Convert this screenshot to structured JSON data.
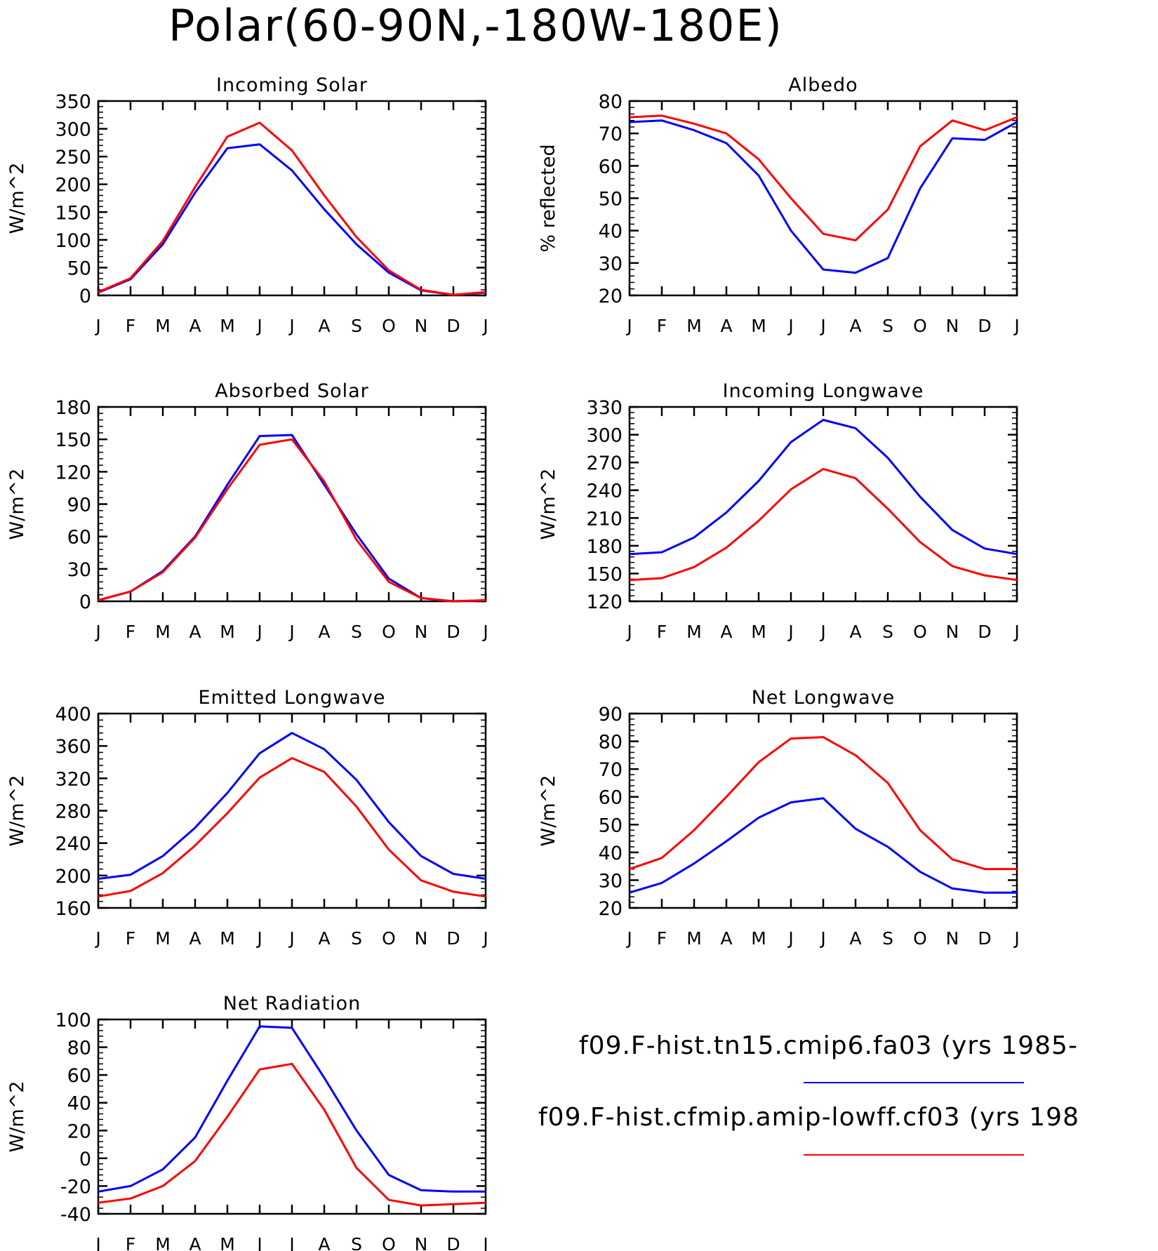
{
  "title": "Polar(60-90N,-180W-180E)",
  "legend": [
    {
      "label": "f09.F-hist.tn15.cmip6.fa03 (yrs 1985-",
      "color": "#0000ff"
    },
    {
      "label": "f09.F-hist.cfmip.amip-lowff.cf03 (yrs 198",
      "color": "#ff0000"
    }
  ],
  "chart_data": [
    {
      "type": "line",
      "title": "Incoming Solar",
      "ylabel": "W/m^2",
      "categories": [
        "J",
        "F",
        "M",
        "A",
        "M",
        "J",
        "J",
        "A",
        "S",
        "O",
        "N",
        "D",
        "J"
      ],
      "ylim": [
        0,
        350
      ],
      "yticks": [
        0,
        50,
        100,
        150,
        200,
        250,
        300,
        350
      ],
      "series": [
        {
          "color": "#0000ff",
          "values": [
            5,
            29,
            92,
            185,
            265,
            272,
            225,
            155,
            92,
            41,
            9,
            1,
            5
          ]
        },
        {
          "color": "#ff0000",
          "values": [
            6,
            31,
            98,
            195,
            286,
            311,
            261,
            180,
            105,
            45,
            10,
            1,
            6
          ]
        }
      ]
    },
    {
      "type": "line",
      "title": "Albedo",
      "ylabel": "% reflected",
      "categories": [
        "J",
        "F",
        "M",
        "A",
        "M",
        "J",
        "J",
        "A",
        "S",
        "O",
        "N",
        "D",
        "J"
      ],
      "ylim": [
        20,
        80
      ],
      "yticks": [
        20,
        30,
        40,
        50,
        60,
        70,
        80
      ],
      "series": [
        {
          "color": "#0000ff",
          "values": [
            73.5,
            74,
            71,
            67,
            57,
            40,
            28,
            27,
            31.5,
            53,
            68.5,
            68,
            73.5
          ]
        },
        {
          "color": "#ff0000",
          "values": [
            75,
            75.5,
            73,
            70,
            62,
            50,
            39,
            37,
            46.5,
            66,
            74,
            71,
            75
          ]
        }
      ]
    },
    {
      "type": "line",
      "title": "Absorbed Solar",
      "ylabel": "W/m^2",
      "categories": [
        "J",
        "F",
        "M",
        "A",
        "M",
        "J",
        "J",
        "A",
        "S",
        "O",
        "N",
        "D",
        "J"
      ],
      "ylim": [
        0,
        180
      ],
      "yticks": [
        0,
        30,
        60,
        90,
        120,
        150,
        180
      ],
      "series": [
        {
          "color": "#0000ff",
          "values": [
            1,
            9,
            28,
            60,
            108,
            153,
            154,
            108,
            62,
            21,
            3,
            0,
            1
          ]
        },
        {
          "color": "#ff0000",
          "values": [
            1,
            9,
            27,
            59,
            104,
            145,
            150,
            111,
            57,
            18,
            3,
            0,
            1
          ]
        }
      ]
    },
    {
      "type": "line",
      "title": "Incoming Longwave",
      "ylabel": "W/m^2",
      "categories": [
        "J",
        "F",
        "M",
        "A",
        "M",
        "J",
        "J",
        "A",
        "S",
        "O",
        "N",
        "D",
        "J"
      ],
      "ylim": [
        120,
        330
      ],
      "yticks": [
        120,
        150,
        180,
        210,
        240,
        270,
        300,
        330
      ],
      "series": [
        {
          "color": "#0000ff",
          "values": [
            171,
            173,
            189,
            216,
            250,
            292,
            316,
            307,
            275,
            233,
            197,
            177,
            171
          ]
        },
        {
          "color": "#ff0000",
          "values": [
            143,
            145,
            157,
            178,
            207,
            241,
            263,
            253,
            220,
            184,
            158,
            148,
            143
          ]
        }
      ]
    },
    {
      "type": "line",
      "title": "Emitted Longwave",
      "ylabel": "W/m^2",
      "categories": [
        "J",
        "F",
        "M",
        "A",
        "M",
        "J",
        "J",
        "A",
        "S",
        "O",
        "N",
        "D",
        "J"
      ],
      "ylim": [
        160,
        400
      ],
      "yticks": [
        160,
        200,
        240,
        280,
        320,
        360,
        400
      ],
      "series": [
        {
          "color": "#0000ff",
          "values": [
            196,
            201,
            224,
            259,
            302,
            351,
            376,
            356,
            318,
            266,
            224,
            202,
            196
          ]
        },
        {
          "color": "#ff0000",
          "values": [
            174,
            181,
            203,
            237,
            277,
            321,
            345,
            328,
            285,
            232,
            194,
            180,
            174
          ]
        }
      ]
    },
    {
      "type": "line",
      "title": "Net Longwave",
      "ylabel": "W/m^2",
      "categories": [
        "J",
        "F",
        "M",
        "A",
        "M",
        "J",
        "J",
        "A",
        "S",
        "O",
        "N",
        "D",
        "J"
      ],
      "ylim": [
        20,
        90
      ],
      "yticks": [
        20,
        30,
        40,
        50,
        60,
        70,
        80,
        90
      ],
      "series": [
        {
          "color": "#0000ff",
          "values": [
            25.5,
            29,
            36,
            44,
            52.5,
            58,
            59.5,
            48.5,
            42,
            33,
            27,
            25.5,
            25.5
          ]
        },
        {
          "color": "#ff0000",
          "values": [
            34,
            38,
            48,
            60,
            72.5,
            81,
            81.5,
            75,
            65,
            48,
            37.5,
            34,
            34
          ]
        }
      ]
    },
    {
      "type": "line",
      "title": "Net Radiation",
      "ylabel": "W/m^2",
      "categories": [
        "J",
        "F",
        "M",
        "A",
        "M",
        "J",
        "J",
        "A",
        "S",
        "O",
        "N",
        "D",
        "J"
      ],
      "ylim": [
        -40,
        100
      ],
      "yticks": [
        -40,
        -20,
        0,
        20,
        40,
        60,
        80,
        100
      ],
      "series": [
        {
          "color": "#0000ff",
          "values": [
            -24,
            -20,
            -8,
            15,
            56,
            95,
            94,
            58,
            20,
            -12,
            -23,
            -24,
            -24
          ]
        },
        {
          "color": "#ff0000",
          "values": [
            -32,
            -29,
            -20,
            -2,
            30,
            64,
            68,
            35,
            -7,
            -30,
            -34,
            -33,
            -32
          ]
        }
      ]
    }
  ]
}
